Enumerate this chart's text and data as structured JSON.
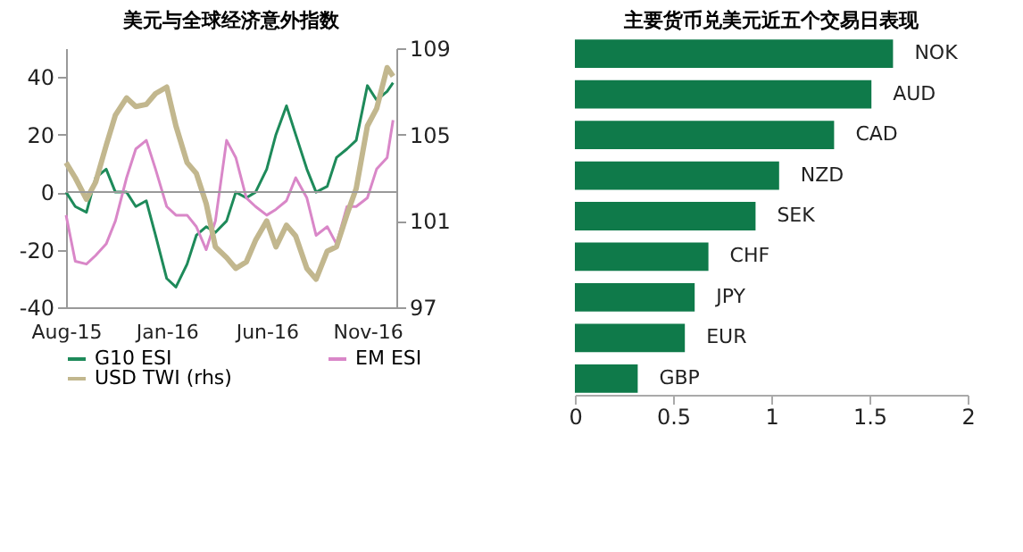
{
  "chart_data": [
    {
      "type": "line",
      "title": "美元与全球经济意外指数",
      "x": [
        "2015-08-01",
        "2015-08-15",
        "2015-09-01",
        "2015-09-15",
        "2015-10-01",
        "2015-10-15",
        "2015-11-01",
        "2015-11-15",
        "2015-12-01",
        "2015-12-15",
        "2016-01-01",
        "2016-01-15",
        "2016-02-01",
        "2016-02-15",
        "2016-03-01",
        "2016-03-15",
        "2016-04-01",
        "2016-04-15",
        "2016-05-01",
        "2016-05-15",
        "2016-06-01",
        "2016-06-15",
        "2016-07-01",
        "2016-07-15",
        "2016-08-01",
        "2016-08-15",
        "2016-09-01",
        "2016-09-15",
        "2016-10-01",
        "2016-10-15",
        "2016-11-01",
        "2016-11-15",
        "2016-12-01",
        "2016-12-10"
      ],
      "series": [
        {
          "name": "G10 ESI",
          "color": "#1e8a5a",
          "values": [
            0,
            -5,
            -7,
            5,
            8,
            0,
            0,
            -5,
            -3,
            -15,
            -30,
            -33,
            -25,
            -15,
            -12,
            -14,
            -10,
            0,
            -2,
            0,
            8,
            20,
            30,
            20,
            8,
            0,
            2,
            12,
            15,
            18,
            37,
            32,
            35,
            38
          ]
        },
        {
          "name": "EM ESI",
          "color": "#d987c8",
          "values": [
            -8,
            -24,
            -25,
            -22,
            -18,
            -10,
            5,
            15,
            18,
            8,
            -5,
            -8,
            -8,
            -12,
            -20,
            -10,
            18,
            12,
            -2,
            -5,
            -8,
            -6,
            -3,
            5,
            -2,
            -15,
            -12,
            -18,
            -5,
            -5,
            -2,
            8,
            12,
            25
          ]
        },
        {
          "name": "USD TWI (rhs)",
          "color": "#c2b78e",
          "axis": "y2",
          "values": [
            103.7,
            103,
            102,
            102.8,
            104.5,
            105.9,
            106.7,
            106.3,
            106.4,
            106.9,
            107.2,
            105.4,
            103.7,
            103.2,
            101.8,
            99.8,
            99.3,
            98.8,
            99.1,
            100.1,
            101,
            99.8,
            100.8,
            100.3,
            98.8,
            98.3,
            99.6,
            99.8,
            101.3,
            102.5,
            105.4,
            106.2,
            108.1,
            107.7
          ]
        }
      ],
      "xlim": [
        "2015-08-01",
        "2016-12-15"
      ],
      "xticks": [
        {
          "value": "2015-08-01",
          "label": "Aug-15"
        },
        {
          "value": "2016-01-01",
          "label": "Jan-16"
        },
        {
          "value": "2016-06-01",
          "label": "Jun-16"
        },
        {
          "value": "2016-11-01",
          "label": "Nov-16"
        }
      ],
      "ylim": [
        -40,
        50
      ],
      "yticks": [
        -40,
        -20,
        0,
        20,
        40
      ],
      "y2lim": [
        97,
        109
      ],
      "y2ticks": [
        97,
        101,
        105,
        109
      ],
      "ref_lines": [
        {
          "axis": "y",
          "value": 0,
          "color": "#999999"
        }
      ],
      "legend": "bottom"
    },
    {
      "type": "bar",
      "title": "主要货币兑美元近五个交易日表现",
      "orientation": "horizontal",
      "color": "#0f7a4a",
      "categories": [
        "NOK",
        "AUD",
        "CAD",
        "NZD",
        "SEK",
        "CHF",
        "JPY",
        "EUR",
        "GBP"
      ],
      "values": [
        1.62,
        1.51,
        1.32,
        1.04,
        0.92,
        0.68,
        0.61,
        0.56,
        0.32
      ],
      "xlim": [
        0,
        2
      ],
      "xticks": [
        0,
        0.5,
        1,
        1.5,
        2
      ]
    }
  ]
}
